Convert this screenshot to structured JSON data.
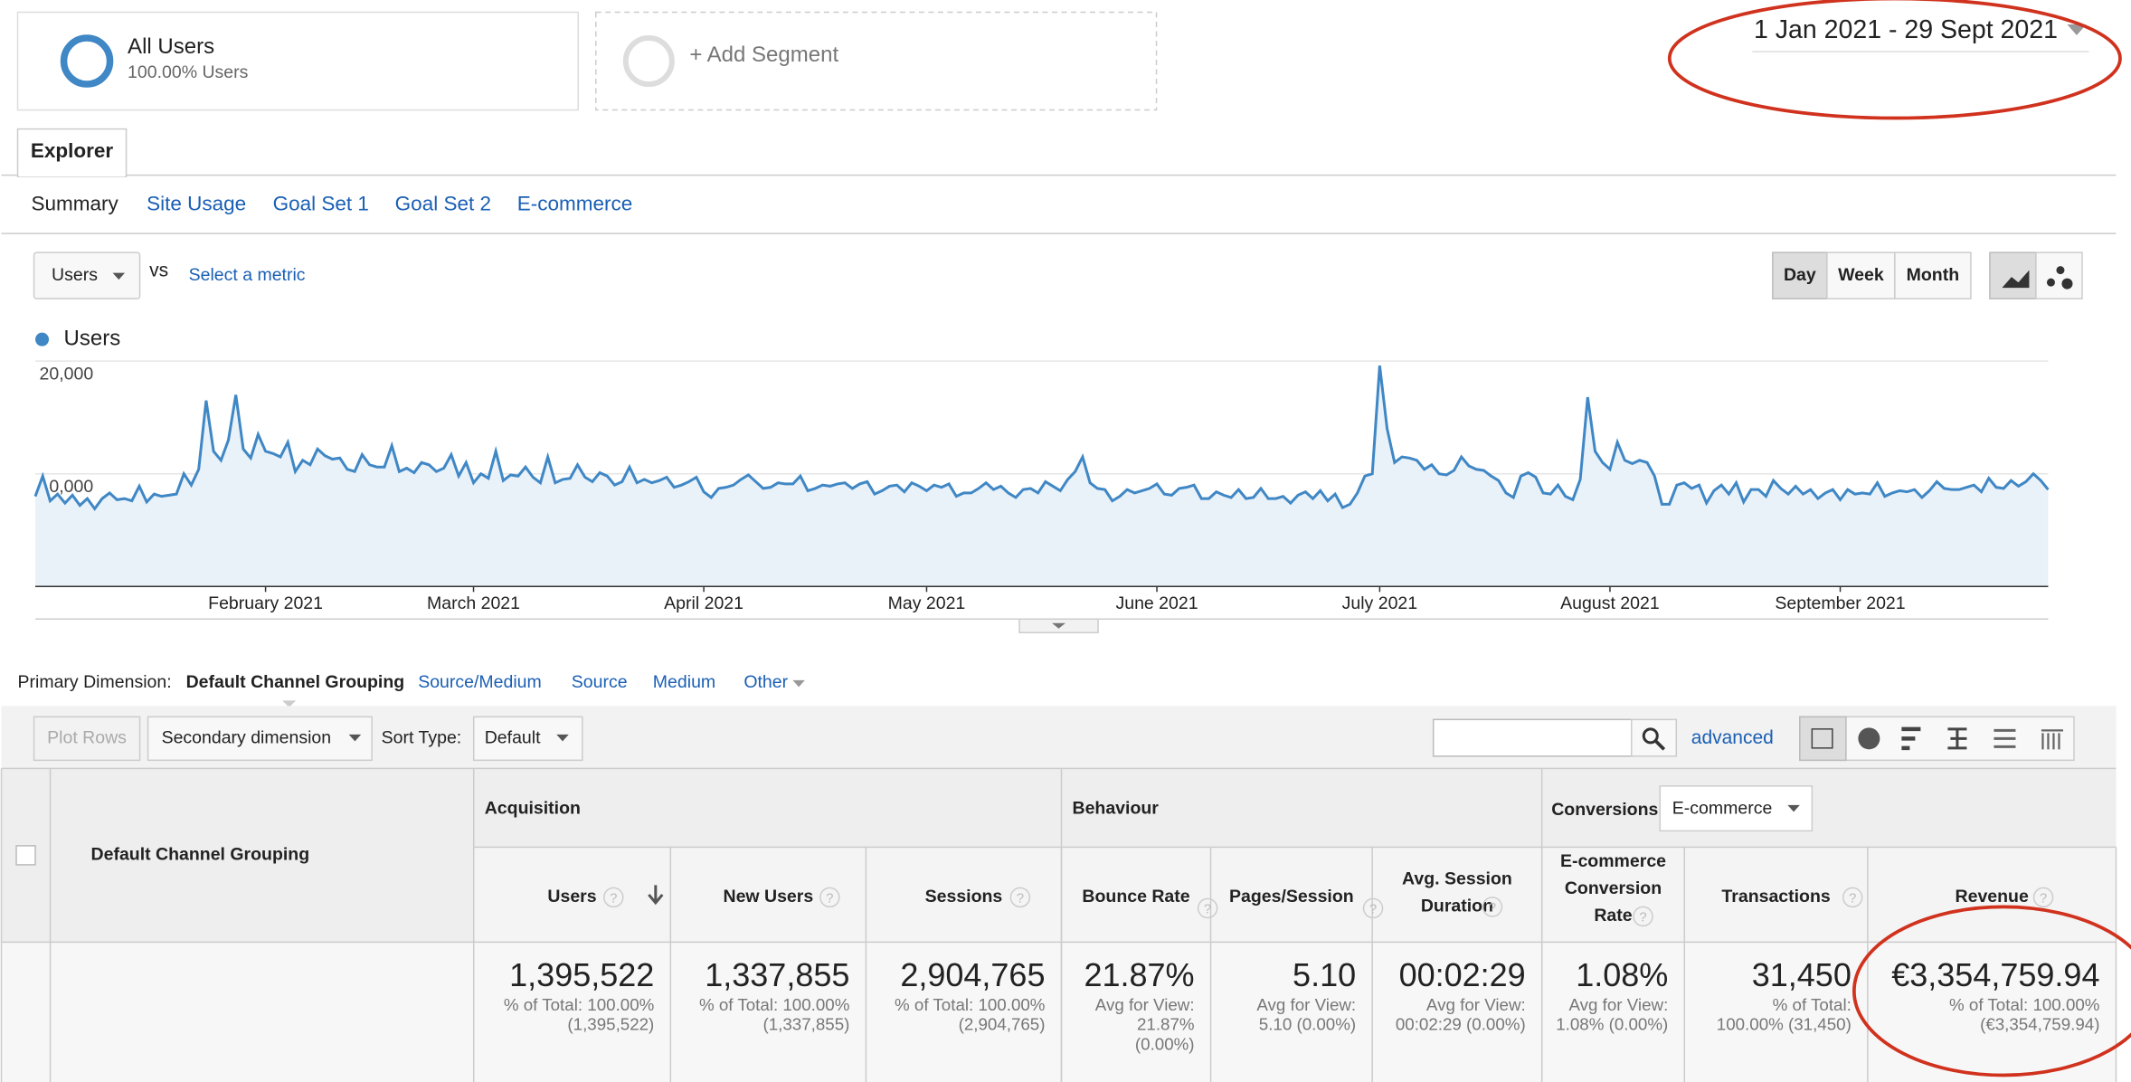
{
  "segments": [
    {
      "title": "All Users",
      "subtitle": "100.00% Users"
    },
    {
      "title": "+ Add Segment"
    }
  ],
  "date_range": "1 Jan 2021 - 29 Sept 2021",
  "tabs": [
    "Explorer"
  ],
  "subtabs": [
    "Summary",
    "Site Usage",
    "Goal Set 1",
    "Goal Set 2",
    "E-commerce"
  ],
  "metric_selector": "Users",
  "vs": "vs",
  "select_metric": "Select a metric",
  "granularity": [
    "Day",
    "Week",
    "Month"
  ],
  "chart_data": {
    "type": "line",
    "series": [
      {
        "name": "Users",
        "color": "#3f87c5",
        "values": [
          8000,
          9800,
          7600,
          8200,
          7400,
          8100,
          7200,
          7800,
          6900,
          7800,
          8300,
          7700,
          7800,
          7600,
          8900,
          7500,
          8200,
          8000,
          8100,
          8200,
          10000,
          9000,
          10400,
          16500,
          12000,
          11200,
          13000,
          17000,
          12200,
          11400,
          13500,
          12000,
          11800,
          11500,
          12800,
          10200,
          11200,
          10800,
          12200,
          11600,
          11300,
          11400,
          10400,
          10200,
          11700,
          10800,
          10600,
          10600,
          12500,
          10200,
          10500,
          10100,
          11000,
          10800,
          10200,
          10500,
          11700,
          9800,
          11000,
          9200,
          10000,
          9600,
          12000,
          9400,
          9900,
          9800,
          10600,
          9700,
          9200,
          11500,
          9200,
          9500,
          9600,
          10800,
          9700,
          9300,
          10100,
          9800,
          9000,
          9300,
          10600,
          9200,
          9500,
          9200,
          9400,
          9700,
          8800,
          9000,
          9300,
          9700,
          8400,
          7900,
          8700,
          8800,
          9000,
          9500,
          9900,
          9300,
          8700,
          8800,
          9200,
          9100,
          9100,
          9800,
          8500,
          8700,
          9000,
          8900,
          9100,
          9200,
          8700,
          9100,
          9300,
          8200,
          8500,
          8900,
          9000,
          8400,
          9200,
          8900,
          8500,
          9000,
          8800,
          9100,
          8000,
          8300,
          8300,
          8700,
          9200,
          8600,
          8900,
          8300,
          7900,
          8600,
          8700,
          8300,
          9300,
          8900,
          8500,
          9500,
          10200,
          11500,
          9200,
          8700,
          8600,
          7600,
          8000,
          8600,
          8300,
          8500,
          8700,
          9100,
          8200,
          8100,
          8700,
          8800,
          9000,
          7800,
          7800,
          8400,
          8100,
          7900,
          8600,
          7800,
          7900,
          8700,
          7800,
          7800,
          8000,
          7400,
          8100,
          8400,
          7800,
          8500,
          7600,
          8200,
          7000,
          7300,
          8300,
          9800,
          10000,
          19600,
          14000,
          11000,
          11500,
          11400,
          11200,
          10400,
          10800,
          10000,
          9900,
          10300,
          11500,
          10700,
          10400,
          10300,
          9800,
          9400,
          8300,
          7900,
          9800,
          10100,
          9700,
          8300,
          8200,
          9000,
          8000,
          7700,
          9500,
          16800,
          12000,
          11000,
          10400,
          12800,
          11200,
          10900,
          11200,
          11000,
          9800,
          7300,
          7300,
          9000,
          9200,
          8700,
          9000,
          7400,
          8500,
          9000,
          8200,
          9200,
          7500,
          8600,
          8600,
          8000,
          9400,
          8700,
          8200,
          8900,
          8200,
          8600,
          7800,
          8300,
          8600,
          7700,
          8600,
          8200,
          8300,
          8200,
          9200,
          8000,
          8300,
          8500,
          8400,
          8600,
          7900,
          8500,
          9300,
          8700,
          8600,
          8600,
          8800,
          9000,
          8400,
          9600,
          8800,
          8700,
          9400,
          8900,
          9300,
          10000,
          9400,
          8600
        ]
      }
    ],
    "ylim": [
      0,
      20000
    ],
    "yticks": [
      {
        "value": 10000,
        "label": "10,000"
      },
      {
        "value": 20000,
        "label": "20,000"
      }
    ],
    "xlim": [
      0,
      271
    ],
    "xticks": [
      {
        "value": 31,
        "label": "February 2021"
      },
      {
        "value": 59,
        "label": "March 2021"
      },
      {
        "value": 90,
        "label": "April 2021"
      },
      {
        "value": 120,
        "label": "May 2021"
      },
      {
        "value": 151,
        "label": "June 2021"
      },
      {
        "value": 181,
        "label": "July 2021"
      },
      {
        "value": 212,
        "label": "August 2021"
      },
      {
        "value": 243,
        "label": "September 2021"
      }
    ]
  },
  "primary_dimension": {
    "label": "Primary Dimension:",
    "options": [
      "Default Channel Grouping",
      "Source/Medium",
      "Source",
      "Medium",
      "Other"
    ]
  },
  "toolbar": {
    "plot_rows": "Plot Rows",
    "secondary": "Secondary dimension",
    "sort_label": "Sort Type:",
    "sort_value": "Default",
    "advanced": "advanced"
  },
  "table": {
    "dimension_header": "Default Channel Grouping",
    "groups": [
      "Acquisition",
      "Behaviour",
      "Conversions"
    ],
    "conversions_select": "E-commerce",
    "help": "?",
    "columns": [
      [
        "Users"
      ],
      [
        "New Users"
      ],
      [
        "Sessions"
      ],
      [
        "Bounce Rate"
      ],
      [
        "Pages/Session"
      ],
      [
        "Avg. Session",
        "Duration"
      ],
      [
        "E-commerce",
        "Conversion",
        "Rate"
      ],
      [
        "Transactions"
      ],
      [
        "Revenue"
      ]
    ],
    "totals": [
      {
        "value": "1,395,522",
        "note": [
          "% of Total: 100.00%",
          "(1,395,522)"
        ]
      },
      {
        "value": "1,337,855",
        "note": [
          "% of Total: 100.00%",
          "(1,337,855)"
        ]
      },
      {
        "value": "2,904,765",
        "note": [
          "% of Total: 100.00%",
          "(2,904,765)"
        ]
      },
      {
        "value": "21.87%",
        "note": [
          "Avg for View:",
          "21.87%",
          "(0.00%)"
        ]
      },
      {
        "value": "5.10",
        "note": [
          "Avg for View:",
          "5.10 (0.00%)"
        ]
      },
      {
        "value": "00:02:29",
        "note": [
          "Avg for View:",
          "00:02:29 (0.00%)"
        ]
      },
      {
        "value": "1.08%",
        "note": [
          "Avg for View:",
          "1.08% (0.00%)"
        ]
      },
      {
        "value": "31,450",
        "note": [
          "% of Total:",
          "100.00% (31,450)"
        ]
      },
      {
        "value": "€3,354,759.94",
        "note": [
          "% of Total: 100.00%",
          "(€3,354,759.94)"
        ]
      }
    ]
  }
}
